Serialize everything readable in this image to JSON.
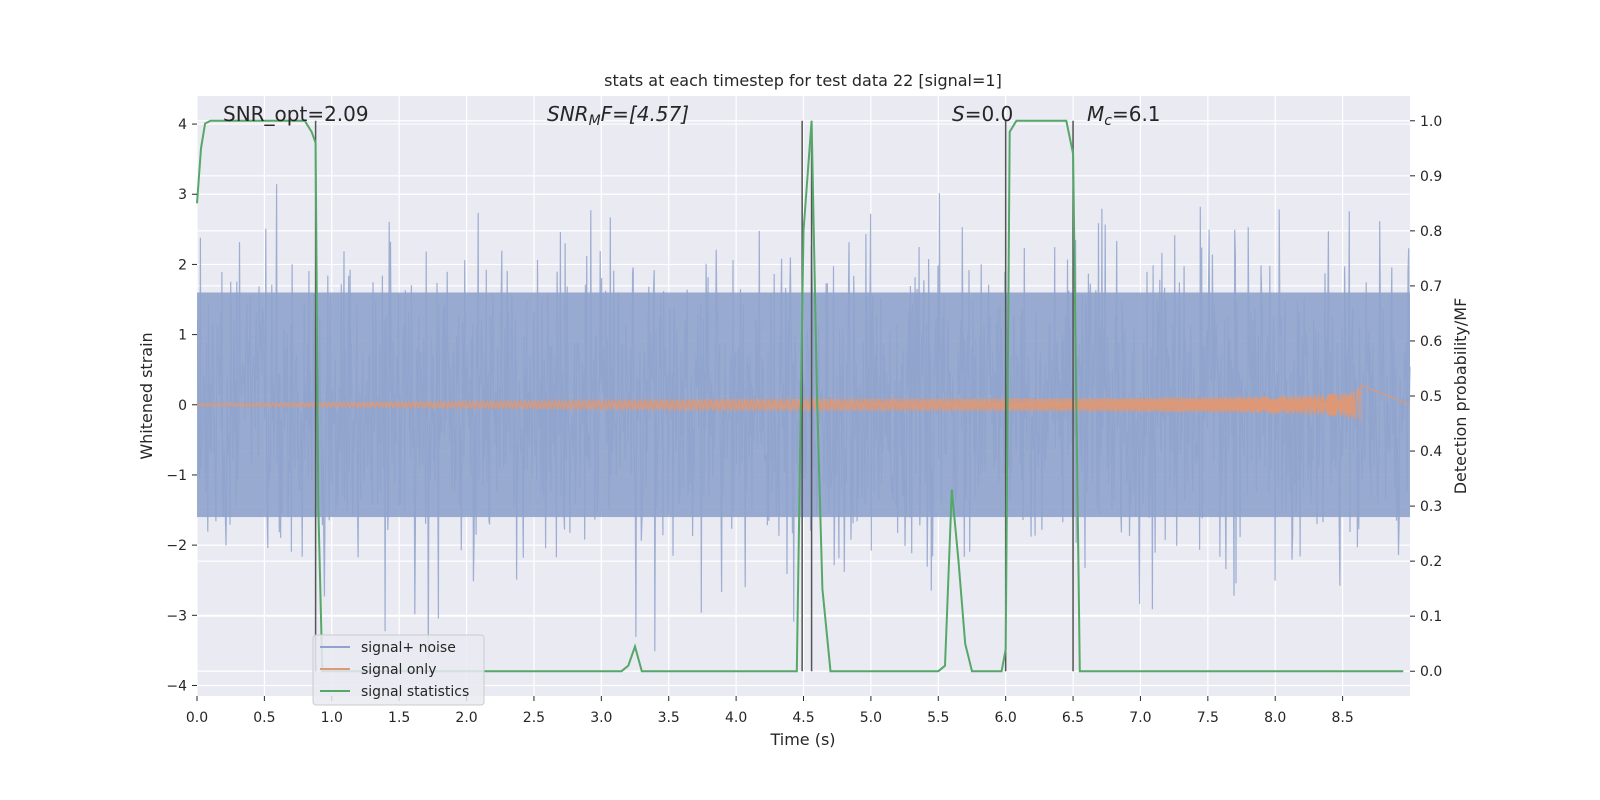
{
  "chart_data": {
    "type": "line",
    "title": "stats at each timestep for test data 22 [signal=1]",
    "xlabel": "Time (s)",
    "ylabel_left": "Whitened strain",
    "ylabel_right": "Detection probability/MF",
    "xlim": [
      0.0,
      9.0
    ],
    "ylim_left": [
      -4.15,
      4.4
    ],
    "ylim_right": [
      -0.045,
      1.045
    ],
    "x_ticks": [
      "0.0",
      "0.5",
      "1.0",
      "1.5",
      "2.0",
      "2.5",
      "3.0",
      "3.5",
      "4.0",
      "4.5",
      "5.0",
      "5.5",
      "6.0",
      "6.5",
      "7.0",
      "7.5",
      "8.0",
      "8.5"
    ],
    "y_ticks_left": [
      "4",
      "3",
      "2",
      "1",
      "0",
      "−1",
      "−2",
      "−3",
      "−4"
    ],
    "y_ticks_right": [
      "1.0",
      "0.9",
      "0.8",
      "0.7",
      "0.6",
      "0.5",
      "0.4",
      "0.3",
      "0.2",
      "0.1",
      "0.0"
    ],
    "grid": true,
    "legend_position": "lower-left",
    "annotations": {
      "snr_opt": "SNR_opt=2.09",
      "snr_mf_prefix": "SNR",
      "snr_mf_sub": "M",
      "snr_mf_suffix": "F=[4.57]",
      "s_name": "S",
      "s_value": "=0.0",
      "mc_name": "M",
      "mc_sub": "c",
      "mc_value": "=6.1"
    },
    "series": [
      {
        "name": "signal+ noise",
        "color": "#8fa3cc",
        "axis": "left",
        "description_range": [
          -3.5,
          3.5
        ]
      },
      {
        "name": "signal only",
        "color": "#dd9977",
        "axis": "left",
        "chirp_end": 8.65
      },
      {
        "name": "signal statistics",
        "color": "#55a868",
        "axis": "right",
        "x": [
          0.0,
          0.03,
          0.06,
          0.1,
          0.15,
          0.3,
          0.5,
          0.7,
          0.8,
          0.85,
          0.88,
          0.9,
          0.93,
          1.0,
          1.5,
          2.0,
          2.5,
          3.0,
          3.15,
          3.2,
          3.25,
          3.3,
          3.5,
          4.0,
          4.45,
          4.5,
          4.56,
          4.6,
          4.64,
          4.7,
          5.0,
          5.5,
          5.55,
          5.6,
          5.65,
          5.7,
          5.75,
          5.8,
          5.9,
          5.97,
          6.0,
          6.03,
          6.08,
          6.15,
          6.3,
          6.45,
          6.5,
          6.55,
          6.62,
          6.7,
          7.0,
          7.5,
          8.0,
          8.5,
          8.8,
          8.95
        ],
        "y": [
          0.85,
          0.95,
          0.995,
          1.0,
          1.0,
          1.0,
          1.0,
          1.0,
          1.0,
          0.98,
          0.96,
          0.3,
          0.0,
          0.0,
          0.0,
          0.0,
          0.0,
          0.0,
          0.0,
          0.01,
          0.045,
          0.0,
          0.0,
          0.0,
          0.0,
          0.8,
          1.0,
          0.5,
          0.15,
          0.0,
          0.0,
          0.0,
          0.01,
          0.33,
          0.2,
          0.05,
          0.0,
          0.0,
          0.0,
          0.0,
          0.04,
          0.98,
          1.0,
          1.0,
          1.0,
          1.0,
          0.94,
          0.0,
          0.0,
          0.0,
          0.0,
          0.0,
          0.0,
          0.0,
          0.0,
          0.0
        ]
      }
    ],
    "vertical_lines_x": [
      0.88,
      4.49,
      4.56,
      6.0,
      6.5
    ]
  }
}
